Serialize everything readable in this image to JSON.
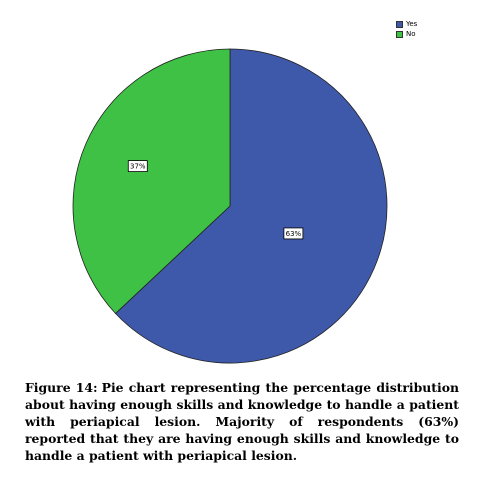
{
  "chart_data": {
    "type": "pie",
    "categories": [
      "Yes",
      "No"
    ],
    "values": [
      63,
      37
    ],
    "data_labels": [
      "63%",
      "37%"
    ],
    "colors": [
      "#3e58aa",
      "#3ec144"
    ],
    "legend": {
      "placement": "top-right",
      "entries": [
        "Yes",
        "No"
      ]
    },
    "start_angle": "12 o'clock",
    "direction": "clockwise"
  },
  "caption": {
    "label": "Figure 14:",
    "text": "Pie chart representing the percentage distribution about having enough skills and knowledge to handle a patient with periapical lesion. Majority of respondents (63%) reported that they are having enough skills and knowledge to handle a patient with periapical lesion."
  }
}
